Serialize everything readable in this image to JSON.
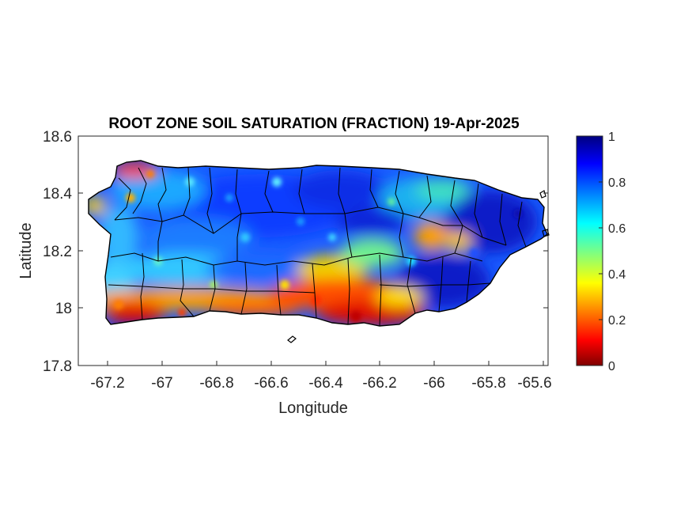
{
  "chart_data": {
    "type": "heatmap",
    "title": "ROOT ZONE SOIL SATURATION (FRACTION) 19-Apr-2025",
    "xlabel": "Longitude",
    "ylabel": "Latitude",
    "xlim": [
      -67.3,
      -65.57
    ],
    "ylim": [
      17.8,
      18.6
    ],
    "xticks": [
      -67.2,
      -67,
      -66.8,
      -66.6,
      -66.4,
      -66.2,
      -66,
      -65.8,
      -65.6
    ],
    "xtick_labels": [
      "-67.2",
      "-67",
      "-66.8",
      "-66.6",
      "-66.4",
      "-66.2",
      "-66",
      "-65.8",
      "-65.6"
    ],
    "yticks": [
      18.6,
      18.4,
      18.2,
      18,
      17.8
    ],
    "ytick_labels": [
      "18.6",
      "18.4",
      "18.2",
      "18",
      "17.8"
    ],
    "colorbar": {
      "colormap": "jet",
      "clim": [
        0,
        1
      ],
      "ticks": [
        1,
        0.8,
        0.6,
        0.4,
        0.2,
        0
      ],
      "tick_labels": [
        "1",
        "0.8",
        "0.6",
        "0.4",
        "0.2",
        "0"
      ]
    },
    "summary": {
      "north_central": 0.8,
      "east": 0.95,
      "south_coast": 0.15,
      "southwest_corner": 0.1,
      "northwest_corner": 0.2,
      "east_central_patch": 0.3
    }
  }
}
